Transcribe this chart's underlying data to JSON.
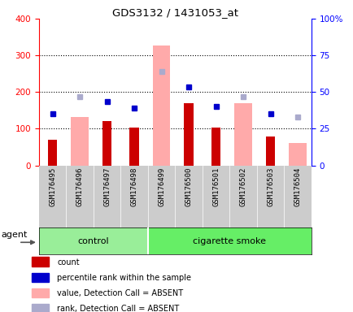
{
  "title": "GDS3132 / 1431053_at",
  "samples": [
    "GSM176495",
    "GSM176496",
    "GSM176497",
    "GSM176498",
    "GSM176499",
    "GSM176500",
    "GSM176501",
    "GSM176502",
    "GSM176503",
    "GSM176504"
  ],
  "groups": [
    "control",
    "control",
    "control",
    "control",
    "cigarette smoke",
    "cigarette smoke",
    "cigarette smoke",
    "cigarette smoke",
    "cigarette smoke",
    "cigarette smoke"
  ],
  "count": [
    70,
    null,
    120,
    102,
    null,
    170,
    102,
    null,
    78,
    null
  ],
  "percentile_rank": [
    140,
    null,
    173,
    157,
    null,
    215,
    160,
    null,
    140,
    null
  ],
  "value_absent": [
    null,
    133,
    null,
    null,
    328,
    null,
    null,
    170,
    null,
    62
  ],
  "rank_absent": [
    null,
    188,
    null,
    null,
    255,
    null,
    null,
    188,
    null,
    133
  ],
  "ylim_left": [
    0,
    400
  ],
  "ylim_right": [
    0,
    100
  ],
  "yticks_left": [
    0,
    100,
    200,
    300,
    400
  ],
  "yticks_right": [
    0,
    25,
    50,
    75,
    100
  ],
  "ytick_labels_right": [
    "0",
    "25",
    "50",
    "75",
    "100%"
  ],
  "color_count": "#cc0000",
  "color_rank": "#0000cc",
  "color_value_absent": "#ffaaaa",
  "color_rank_absent": "#aaaacc",
  "color_group_control": "#99ee99",
  "color_group_smoke": "#66ee66",
  "color_bg_samples": "#cccccc",
  "legend_items": [
    {
      "label": "count",
      "color": "#cc0000"
    },
    {
      "label": "percentile rank within the sample",
      "color": "#0000cc"
    },
    {
      "label": "value, Detection Call = ABSENT",
      "color": "#ffaaaa"
    },
    {
      "label": "rank, Detection Call = ABSENT",
      "color": "#aaaacc"
    }
  ]
}
